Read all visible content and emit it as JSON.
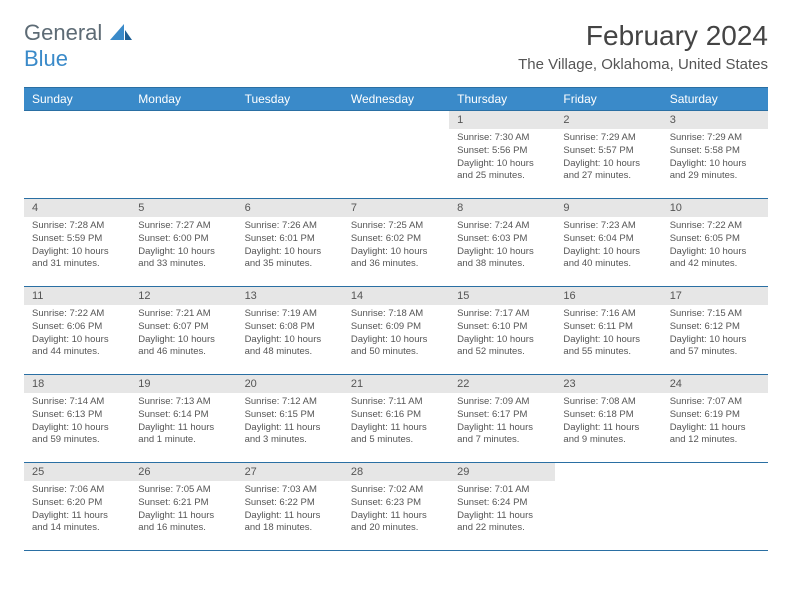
{
  "logo": {
    "general": "General",
    "blue": "Blue"
  },
  "month_title": "February 2024",
  "location": "The Village, Oklahoma, United States",
  "style": {
    "header_bg": "#3a8ac9",
    "header_border": "#2a6fa3",
    "daynum_bg": "#e6e6e6",
    "text_color": "#555555",
    "title_color": "#444444",
    "logo_gray": "#5d6b75",
    "logo_blue": "#3a8ac9"
  },
  "weekdays": [
    "Sunday",
    "Monday",
    "Tuesday",
    "Wednesday",
    "Thursday",
    "Friday",
    "Saturday"
  ],
  "weeks": [
    [
      null,
      null,
      null,
      null,
      {
        "n": "1",
        "sunrise": "Sunrise: 7:30 AM",
        "sunset": "Sunset: 5:56 PM",
        "daylight": "Daylight: 10 hours and 25 minutes."
      },
      {
        "n": "2",
        "sunrise": "Sunrise: 7:29 AM",
        "sunset": "Sunset: 5:57 PM",
        "daylight": "Daylight: 10 hours and 27 minutes."
      },
      {
        "n": "3",
        "sunrise": "Sunrise: 7:29 AM",
        "sunset": "Sunset: 5:58 PM",
        "daylight": "Daylight: 10 hours and 29 minutes."
      }
    ],
    [
      {
        "n": "4",
        "sunrise": "Sunrise: 7:28 AM",
        "sunset": "Sunset: 5:59 PM",
        "daylight": "Daylight: 10 hours and 31 minutes."
      },
      {
        "n": "5",
        "sunrise": "Sunrise: 7:27 AM",
        "sunset": "Sunset: 6:00 PM",
        "daylight": "Daylight: 10 hours and 33 minutes."
      },
      {
        "n": "6",
        "sunrise": "Sunrise: 7:26 AM",
        "sunset": "Sunset: 6:01 PM",
        "daylight": "Daylight: 10 hours and 35 minutes."
      },
      {
        "n": "7",
        "sunrise": "Sunrise: 7:25 AM",
        "sunset": "Sunset: 6:02 PM",
        "daylight": "Daylight: 10 hours and 36 minutes."
      },
      {
        "n": "8",
        "sunrise": "Sunrise: 7:24 AM",
        "sunset": "Sunset: 6:03 PM",
        "daylight": "Daylight: 10 hours and 38 minutes."
      },
      {
        "n": "9",
        "sunrise": "Sunrise: 7:23 AM",
        "sunset": "Sunset: 6:04 PM",
        "daylight": "Daylight: 10 hours and 40 minutes."
      },
      {
        "n": "10",
        "sunrise": "Sunrise: 7:22 AM",
        "sunset": "Sunset: 6:05 PM",
        "daylight": "Daylight: 10 hours and 42 minutes."
      }
    ],
    [
      {
        "n": "11",
        "sunrise": "Sunrise: 7:22 AM",
        "sunset": "Sunset: 6:06 PM",
        "daylight": "Daylight: 10 hours and 44 minutes."
      },
      {
        "n": "12",
        "sunrise": "Sunrise: 7:21 AM",
        "sunset": "Sunset: 6:07 PM",
        "daylight": "Daylight: 10 hours and 46 minutes."
      },
      {
        "n": "13",
        "sunrise": "Sunrise: 7:19 AM",
        "sunset": "Sunset: 6:08 PM",
        "daylight": "Daylight: 10 hours and 48 minutes."
      },
      {
        "n": "14",
        "sunrise": "Sunrise: 7:18 AM",
        "sunset": "Sunset: 6:09 PM",
        "daylight": "Daylight: 10 hours and 50 minutes."
      },
      {
        "n": "15",
        "sunrise": "Sunrise: 7:17 AM",
        "sunset": "Sunset: 6:10 PM",
        "daylight": "Daylight: 10 hours and 52 minutes."
      },
      {
        "n": "16",
        "sunrise": "Sunrise: 7:16 AM",
        "sunset": "Sunset: 6:11 PM",
        "daylight": "Daylight: 10 hours and 55 minutes."
      },
      {
        "n": "17",
        "sunrise": "Sunrise: 7:15 AM",
        "sunset": "Sunset: 6:12 PM",
        "daylight": "Daylight: 10 hours and 57 minutes."
      }
    ],
    [
      {
        "n": "18",
        "sunrise": "Sunrise: 7:14 AM",
        "sunset": "Sunset: 6:13 PM",
        "daylight": "Daylight: 10 hours and 59 minutes."
      },
      {
        "n": "19",
        "sunrise": "Sunrise: 7:13 AM",
        "sunset": "Sunset: 6:14 PM",
        "daylight": "Daylight: 11 hours and 1 minute."
      },
      {
        "n": "20",
        "sunrise": "Sunrise: 7:12 AM",
        "sunset": "Sunset: 6:15 PM",
        "daylight": "Daylight: 11 hours and 3 minutes."
      },
      {
        "n": "21",
        "sunrise": "Sunrise: 7:11 AM",
        "sunset": "Sunset: 6:16 PM",
        "daylight": "Daylight: 11 hours and 5 minutes."
      },
      {
        "n": "22",
        "sunrise": "Sunrise: 7:09 AM",
        "sunset": "Sunset: 6:17 PM",
        "daylight": "Daylight: 11 hours and 7 minutes."
      },
      {
        "n": "23",
        "sunrise": "Sunrise: 7:08 AM",
        "sunset": "Sunset: 6:18 PM",
        "daylight": "Daylight: 11 hours and 9 minutes."
      },
      {
        "n": "24",
        "sunrise": "Sunrise: 7:07 AM",
        "sunset": "Sunset: 6:19 PM",
        "daylight": "Daylight: 11 hours and 12 minutes."
      }
    ],
    [
      {
        "n": "25",
        "sunrise": "Sunrise: 7:06 AM",
        "sunset": "Sunset: 6:20 PM",
        "daylight": "Daylight: 11 hours and 14 minutes."
      },
      {
        "n": "26",
        "sunrise": "Sunrise: 7:05 AM",
        "sunset": "Sunset: 6:21 PM",
        "daylight": "Daylight: 11 hours and 16 minutes."
      },
      {
        "n": "27",
        "sunrise": "Sunrise: 7:03 AM",
        "sunset": "Sunset: 6:22 PM",
        "daylight": "Daylight: 11 hours and 18 minutes."
      },
      {
        "n": "28",
        "sunrise": "Sunrise: 7:02 AM",
        "sunset": "Sunset: 6:23 PM",
        "daylight": "Daylight: 11 hours and 20 minutes."
      },
      {
        "n": "29",
        "sunrise": "Sunrise: 7:01 AM",
        "sunset": "Sunset: 6:24 PM",
        "daylight": "Daylight: 11 hours and 22 minutes."
      },
      null,
      null
    ]
  ]
}
